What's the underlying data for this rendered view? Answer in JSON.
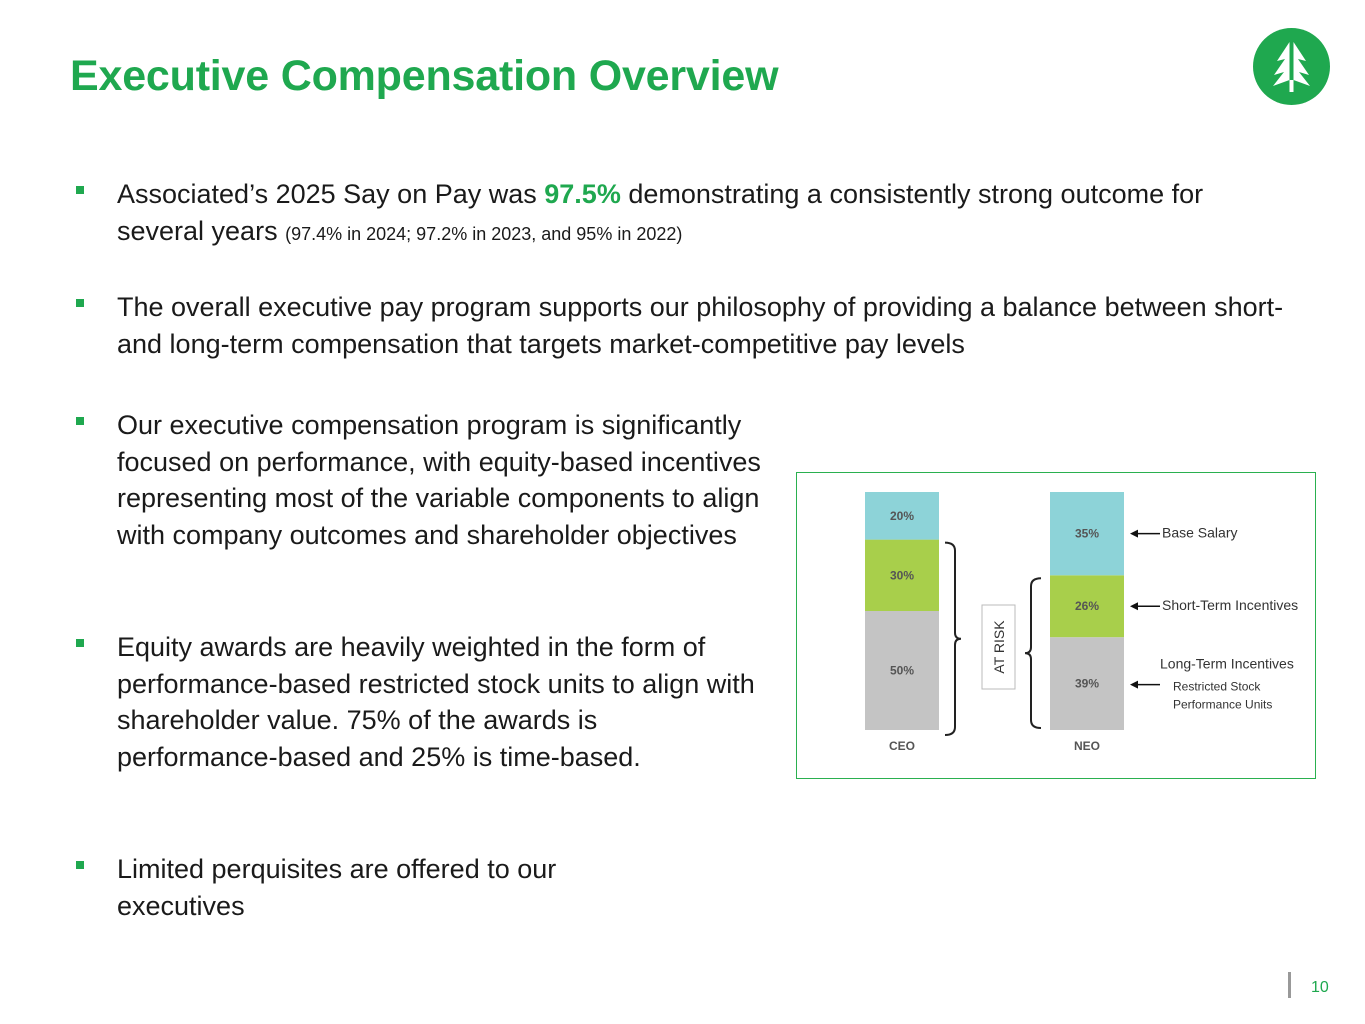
{
  "slide": {
    "title": "Executive Compensation Overview",
    "page_number": "10",
    "accent_color": "#1fa84f",
    "logo_icon": "tree-logo-icon"
  },
  "bullets": [
    {
      "before": "Associated’s 2025 Say on Pay was ",
      "highlight": "97.5%",
      "after": " demonstrating a consistently strong outcome for several years ",
      "small": "(97.4% in 2024; 97.2% in 2023, and 95% in 2022)"
    },
    {
      "text": "The overall executive pay program supports our philosophy of providing a balance between short- and long-term compensation that targets market-competitive pay levels"
    },
    {
      "text": "Our executive compensation program is significantly focused on performance, with equity-based incentives representing most of the variable components to align with company outcomes and shareholder objectives"
    },
    {
      "text": "Equity awards are heavily weighted in the form of performance-based restricted stock units to align with shareholder value. 75% of the awards is performance-based and 25% is time-based."
    },
    {
      "text": "Limited perquisites are offered to our executives"
    }
  ],
  "chart_data": {
    "type": "bar",
    "stacked": true,
    "categories": [
      "CEO",
      "NEO"
    ],
    "series": [
      {
        "name": "Long-Term Incentives",
        "values": [
          50,
          39
        ],
        "labels": [
          "50%",
          "39%"
        ],
        "color": "#c4c4c4",
        "sublabel": [
          "Restricted Stock",
          "Performance Units"
        ]
      },
      {
        "name": "Short-Term Incentives",
        "values": [
          30,
          26
        ],
        "labels": [
          "30%",
          "26%"
        ],
        "color": "#a8cf4b"
      },
      {
        "name": "Base Salary",
        "values": [
          20,
          35
        ],
        "labels": [
          "20%",
          "35%"
        ],
        "color": "#8dd3d8"
      }
    ],
    "bracket_label": "AT RISK",
    "ylim": [
      0,
      100
    ],
    "legend_placement": "right"
  }
}
